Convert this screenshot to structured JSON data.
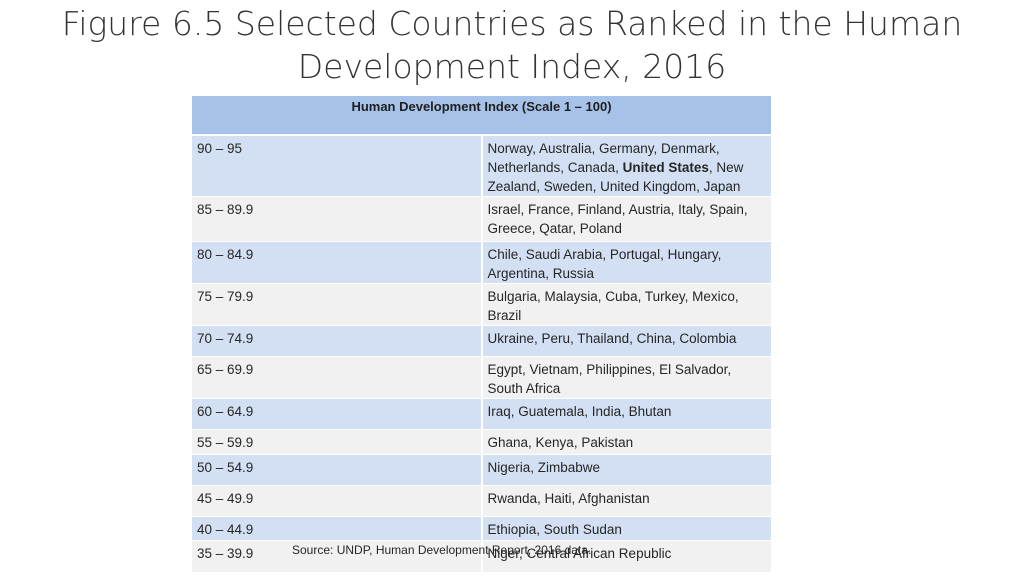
{
  "title": "Figure 6.5 Selected Countries as Ranked in the Human Development Index, 2016",
  "table": {
    "header": "Human Development Index (Scale 1 – 100)",
    "rows": [
      {
        "range": "90 – 95",
        "countries_a": "Norway, Australia, Germany, Denmark, Netherlands, Canada, ",
        "countries_bold": "United States",
        "countries_b": ", New Zealand, Sweden, United Kingdom, Japan"
      },
      {
        "range": "85 – 89.9",
        "countries": "Israel, France, Finland, Austria, Italy, Spain, Greece, Qatar, Poland"
      },
      {
        "range": "80 – 84.9",
        "countries": "Chile, Saudi Arabia, Portugal, Hungary, Argentina, Russia"
      },
      {
        "range": "75 – 79.9",
        "countries": "Bulgaria, Malaysia, Cuba, Turkey, Mexico,  Brazil"
      },
      {
        "range": "70 – 74.9",
        "countries": "Ukraine, Peru, Thailand, China, Colombia"
      },
      {
        "range": "65 – 69.9",
        "countries": "Egypt, Vietnam, Philippines, El Salvador, South Africa"
      },
      {
        "range": "60 – 64.9",
        "countries": "Iraq, Guatemala, India, Bhutan"
      },
      {
        "range": "55 – 59.9",
        "countries": "Ghana, Kenya, Pakistan"
      },
      {
        "range": "50 – 54.9",
        "countries": "Nigeria, Zimbabwe"
      },
      {
        "range": "45 – 49.9",
        "countries": "Rwanda, Haiti, Afghanistan"
      },
      {
        "range": "40 – 44.9",
        "countries": "Ethiopia, South Sudan"
      },
      {
        "range": "35 – 39.9",
        "countries": "Niger, Central African Republic"
      }
    ]
  },
  "source": "Source: UNDP, Human Development Report, 2016 data."
}
